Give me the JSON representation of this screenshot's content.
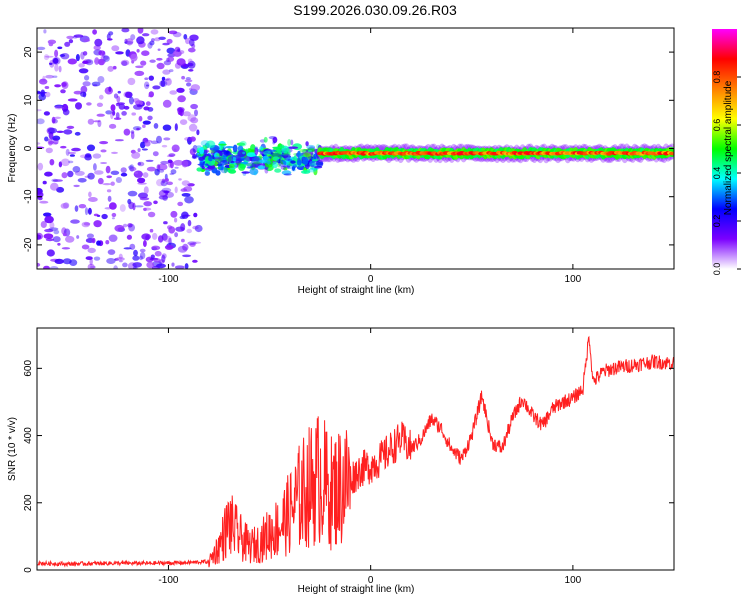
{
  "title": "S199.2026.030.09.26.R03",
  "chart_data": [
    {
      "type": "heatmap",
      "name": "spectrogram",
      "xlabel": "Height of straight line (km)",
      "ylabel": "Frequency (Hz)",
      "xlim": [
        -165,
        150
      ],
      "ylim": [
        -25,
        25
      ],
      "xticks": [
        -100,
        0,
        100
      ],
      "yticks": [
        -20,
        -10,
        0,
        10,
        20
      ],
      "colorbar": {
        "label": "Normalized spectral amplitude",
        "range": [
          0,
          1
        ],
        "ticks": [
          0.0,
          0.2,
          0.4,
          0.6,
          0.8
        ],
        "tick_labels": [
          "0.0",
          "0.2",
          "0.4",
          "0.6",
          "0.8"
        ],
        "colors": [
          "#ffffff",
          "#7b00ff",
          "#0000ff",
          "#00ffff",
          "#00ff00",
          "#ffff00",
          "#ff8000",
          "#ff0000",
          "#ff00ff"
        ]
      },
      "regions": [
        {
          "x_range": [
            -165,
            -85
          ],
          "freq_center": 0,
          "freq_spread": 25,
          "amplitude": 0.15,
          "description": "noise"
        },
        {
          "x_range": [
            -85,
            -25
          ],
          "freq_center": -2,
          "freq_spread": 5,
          "amplitude": 0.3
        },
        {
          "x_range": [
            -25,
            150
          ],
          "freq_center": -1,
          "freq_spread": 1,
          "amplitude": 0.85
        }
      ]
    },
    {
      "type": "line",
      "name": "snr",
      "xlabel": "Height of straight line (km)",
      "ylabel": "SNR (10 * v/v)",
      "xlim": [
        -165,
        150
      ],
      "ylim": [
        0,
        720
      ],
      "xticks": [
        -100,
        0,
        100
      ],
      "yticks": [
        0,
        200,
        400,
        600
      ],
      "color": "#ff2020",
      "x": [
        -165,
        -150,
        -130,
        -110,
        -90,
        -80,
        -75,
        -70,
        -65,
        -60,
        -55,
        -50,
        -45,
        -40,
        -35,
        -30,
        -25,
        -20,
        -15,
        -10,
        -5,
        0,
        5,
        10,
        15,
        20,
        25,
        30,
        35,
        40,
        45,
        50,
        55,
        60,
        65,
        70,
        75,
        80,
        85,
        90,
        95,
        100,
        105,
        108,
        110,
        115,
        120,
        130,
        140,
        150
      ],
      "y": [
        20,
        18,
        20,
        20,
        22,
        25,
        70,
        140,
        100,
        70,
        80,
        110,
        130,
        170,
        220,
        250,
        280,
        230,
        250,
        270,
        300,
        310,
        330,
        360,
        390,
        360,
        390,
        450,
        420,
        360,
        330,
        400,
        520,
        380,
        360,
        450,
        510,
        460,
        430,
        480,
        500,
        510,
        540,
        700,
        560,
        590,
        600,
        610,
        620,
        615
      ]
    }
  ]
}
